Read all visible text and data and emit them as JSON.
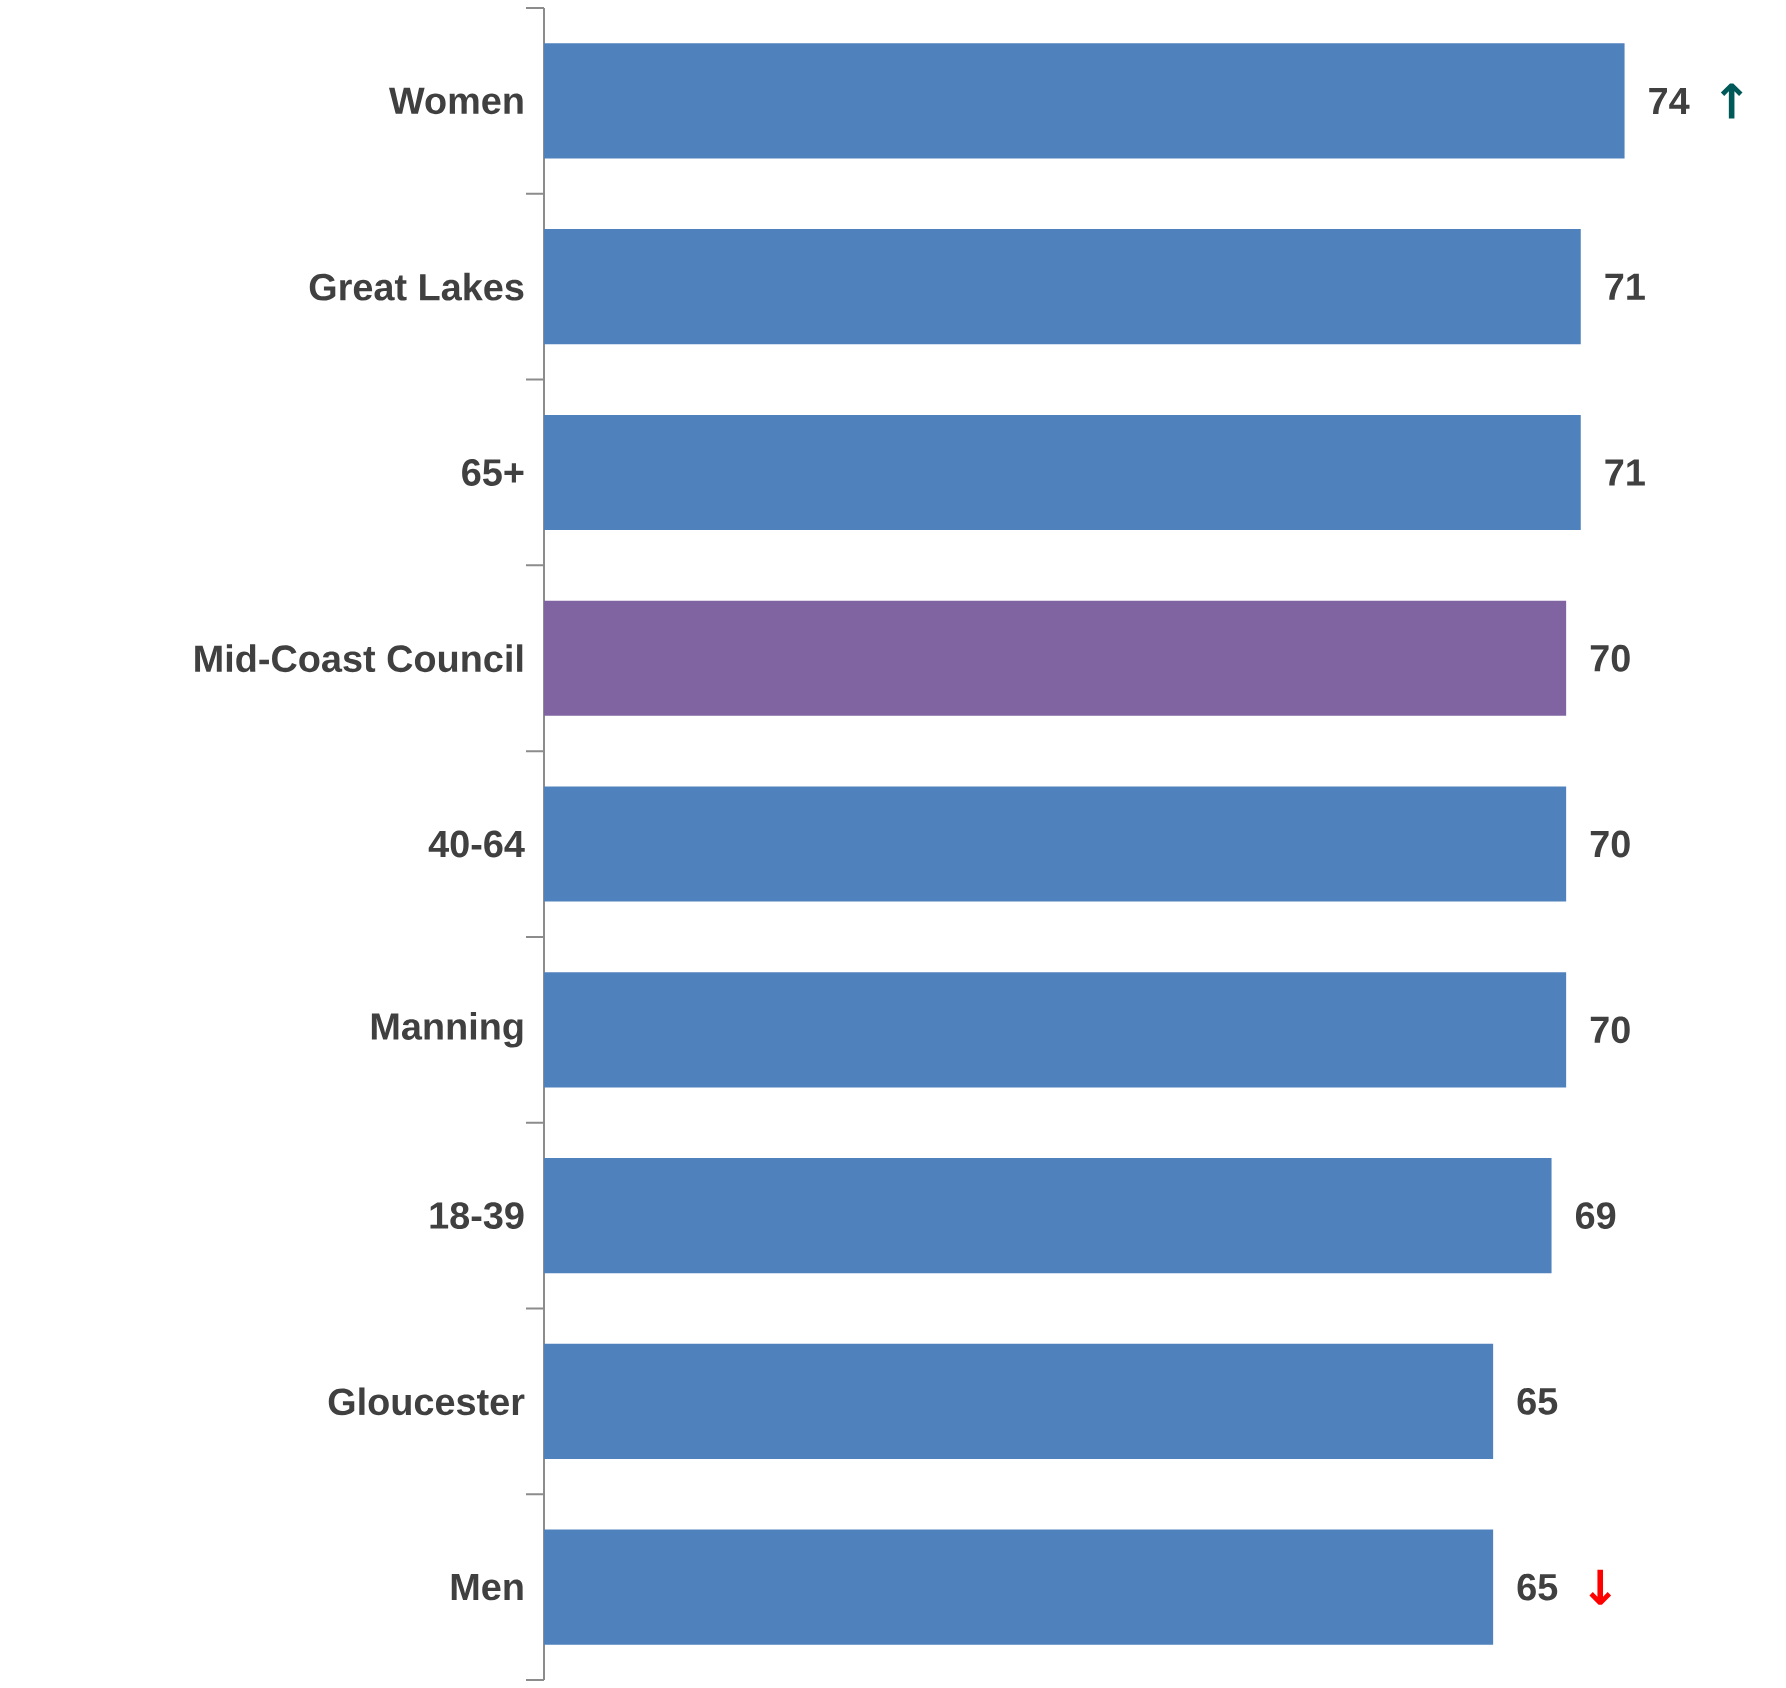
{
  "chart_data": {
    "type": "bar",
    "orientation": "horizontal",
    "categories": [
      "Women",
      "Great Lakes",
      "65+",
      "Mid-Coast Council",
      "40-64",
      "Manning",
      "18-39",
      "Gloucester",
      "Men"
    ],
    "values": [
      74,
      71,
      71,
      70,
      70,
      70,
      69,
      65,
      65
    ],
    "colors": [
      "#4f81bd",
      "#4f81bd",
      "#4f81bd",
      "#8064a2",
      "#4f81bd",
      "#4f81bd",
      "#4f81bd",
      "#4f81bd",
      "#4f81bd"
    ],
    "data_labels": true,
    "tick_labels": "y",
    "annotations": [
      {
        "text": "↑",
        "x": 74,
        "y": "Women"
      },
      {
        "text": "↓",
        "x": 65,
        "y": "Men"
      }
    ]
  }
}
